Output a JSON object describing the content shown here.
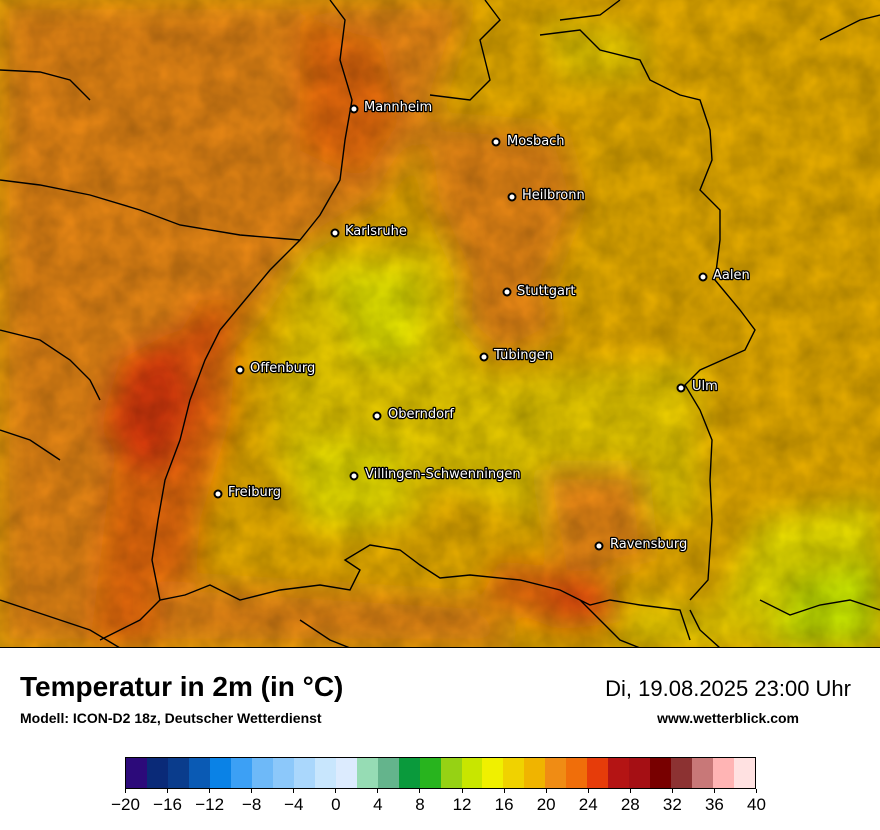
{
  "title": "Temperatur in 2m (in °C)",
  "model": "Modell: ICON-D2 18z, Deutscher Wetterdienst",
  "datetime": "Di, 19.08.2025 23:00 Uhr",
  "website": "www.wetterblick.com",
  "map": {
    "cities": [
      {
        "id": "mannheim",
        "name": "Mannheim"
      },
      {
        "id": "mosbach",
        "name": "Mosbach"
      },
      {
        "id": "heilbronn",
        "name": "Heilbronn"
      },
      {
        "id": "karlsruhe",
        "name": "Karlsruhe"
      },
      {
        "id": "aalen",
        "name": "Aalen"
      },
      {
        "id": "stuttgart",
        "name": "Stuttgart"
      },
      {
        "id": "tuebingen",
        "name": "Tübingen"
      },
      {
        "id": "offenburg",
        "name": "Offenburg"
      },
      {
        "id": "ulm",
        "name": "Ulm"
      },
      {
        "id": "oberndorf",
        "name": "Oberndorf"
      },
      {
        "id": "villingen",
        "name": "Villingen-Schwenningen"
      },
      {
        "id": "freiburg",
        "name": "Freiburg"
      },
      {
        "id": "ravensburg",
        "name": "Ravensburg"
      }
    ]
  },
  "legend": {
    "unit": "°C",
    "colors": [
      "#2c0a7a",
      "#0a2a78",
      "#0a3c8c",
      "#0a5ab4",
      "#0a82e6",
      "#3ca0f5",
      "#6eb9f8",
      "#8cc8fa",
      "#aad7fc",
      "#c8e6fd",
      "#dcebfe",
      "#96dcb4",
      "#64b48c",
      "#0a9a3c",
      "#28b41e",
      "#96d214",
      "#c8e600",
      "#f0f000",
      "#f0d200",
      "#f0b400",
      "#f08c14",
      "#f06e0a",
      "#e63c0a",
      "#b41414",
      "#a50f14",
      "#780000",
      "#8c3232",
      "#c87878",
      "#ffb4b4",
      "#ffe1e1"
    ],
    "ticks": [
      "−20",
      "−16",
      "−12",
      "−8",
      "−4",
      "0",
      "4",
      "8",
      "12",
      "16",
      "20",
      "24",
      "28",
      "32",
      "36",
      "40"
    ],
    "tick_values": [
      -20,
      -16,
      -12,
      -8,
      -4,
      0,
      4,
      8,
      12,
      16,
      20,
      24,
      28,
      32,
      36,
      40
    ],
    "min": -20,
    "max": 40
  }
}
